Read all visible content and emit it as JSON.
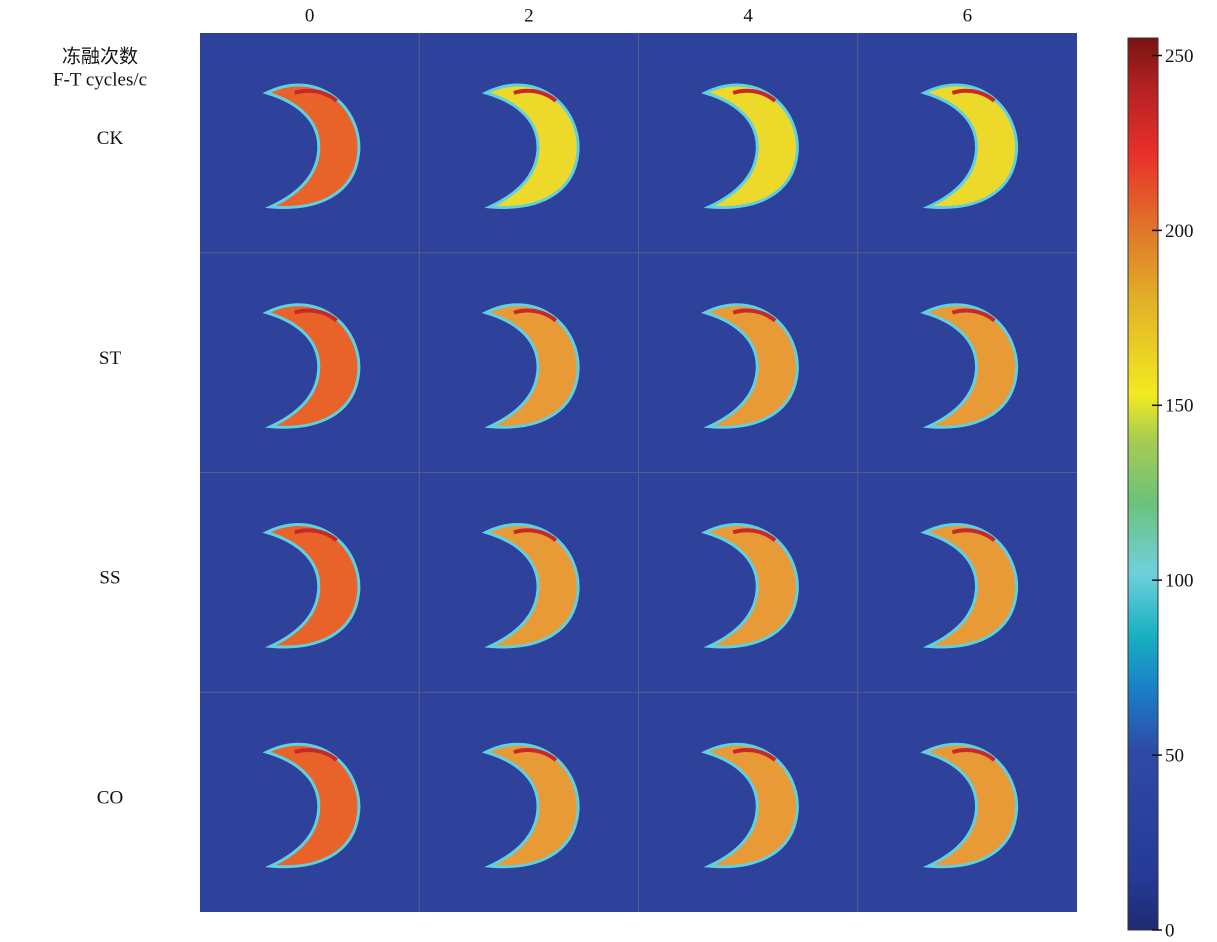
{
  "header": {
    "title": "冻融次数",
    "subtitle": "F-T cycles/c"
  },
  "columns": [
    "0",
    "2",
    "4",
    "6"
  ],
  "rows": [
    "CK",
    "ST",
    "SS",
    "CO"
  ],
  "colorbar": {
    "range": [
      0,
      255
    ],
    "ticks": [
      0,
      50,
      100,
      150,
      200,
      250
    ]
  }
}
